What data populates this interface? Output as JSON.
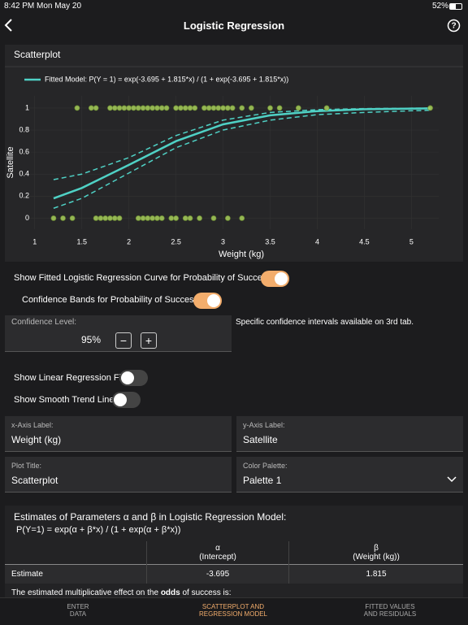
{
  "status_bar": {
    "time": "8:42 PM",
    "date": "Mon May 20",
    "battery": "52%"
  },
  "nav": {
    "title": "Logistic Regression"
  },
  "chart_data": {
    "type": "scatter",
    "title": "Scatterplot",
    "x_label": "Weight (kg)",
    "y_label": "Satellite",
    "xlim": [
      0.89,
      5.29
    ],
    "ylim": [
      -0.1,
      1.11
    ],
    "xticks": [
      1,
      1.5,
      2,
      2.5,
      3,
      3.5,
      4,
      4.5,
      5
    ],
    "yticks": [
      0,
      0.2,
      0.4,
      0.6,
      0.8,
      1
    ],
    "grid": true,
    "points": {
      "color": "#a8d05a",
      "x": [
        1.45,
        1.6,
        1.65,
        1.8,
        1.85,
        1.9,
        1.95,
        2.0,
        2.05,
        2.1,
        2.15,
        2.2,
        2.25,
        2.3,
        2.35,
        2.4,
        2.5,
        2.55,
        2.6,
        2.65,
        2.7,
        2.8,
        2.85,
        2.9,
        2.95,
        3.0,
        3.05,
        3.1,
        3.2,
        3.3,
        3.5,
        3.6,
        3.8,
        4.1,
        5.2,
        1.2,
        1.3,
        1.4,
        1.65,
        1.7,
        1.75,
        1.8,
        1.85,
        1.9,
        2.1,
        2.15,
        2.2,
        2.25,
        2.3,
        2.35,
        2.45,
        2.5,
        2.6,
        2.65,
        2.75,
        2.9,
        3.05,
        3.2
      ],
      "values": [
        1,
        1,
        1,
        1,
        1,
        1,
        1,
        1,
        1,
        1,
        1,
        1,
        1,
        1,
        1,
        1,
        1,
        1,
        1,
        1,
        1,
        1,
        1,
        1,
        1,
        1,
        1,
        1,
        1,
        1,
        1,
        1,
        1,
        1,
        1,
        0,
        0,
        0,
        0,
        0,
        0,
        0,
        0,
        0,
        0,
        0,
        0,
        0,
        0,
        0,
        0,
        0,
        0,
        0,
        0,
        0,
        0,
        0
      ]
    },
    "fit": {
      "name": "Fitted Model: P(Y = 1) = exp(-3.695 + 1.815*x) / (1 + exp(-3.695 + 1.815*x))",
      "color": "#4fd1c5",
      "x": [
        1.2,
        1.5,
        2.0,
        2.5,
        3.0,
        3.5,
        4.0,
        4.5,
        5.0,
        5.2
      ],
      "values": [
        0.18,
        0.274,
        0.484,
        0.699,
        0.852,
        0.934,
        0.972,
        0.989,
        0.995,
        0.997
      ]
    },
    "bands": {
      "color": "#4fd1c5",
      "x": [
        1.2,
        1.5,
        2.0,
        2.5,
        3.0,
        3.5,
        4.0,
        4.5,
        5.0,
        5.2
      ],
      "upper": [
        0.35,
        0.4,
        0.55,
        0.75,
        0.89,
        0.96,
        0.985,
        0.995,
        0.998,
        0.999
      ],
      "lower": [
        0.09,
        0.18,
        0.41,
        0.64,
        0.8,
        0.89,
        0.94,
        0.96,
        0.975,
        0.98
      ]
    }
  },
  "controls": {
    "toggles": [
      {
        "label": "Show Fitted Logistic Regression Curve for Probability of Success",
        "on": true
      },
      {
        "label": "Confidence Bands for Probability of Success",
        "on": true
      },
      {
        "label": "Show Linear Regression Fit",
        "on": false
      },
      {
        "label": "Show Smooth Trend Line",
        "on": false
      }
    ],
    "confidence": {
      "label": "Confidence Level:",
      "value": "95%",
      "minus": "−",
      "plus": "+"
    },
    "note": "Specific confidence intervals available on 3rd tab.",
    "fields": [
      {
        "label": "x-Axis Label:",
        "value": "Weight (kg)"
      },
      {
        "label": "y-Axis Label:",
        "value": "Satellite"
      },
      {
        "label": "Plot Title:",
        "value": "Scatterplot"
      },
      {
        "label": "Color Palette:",
        "value": "Palette 1"
      }
    ]
  },
  "estimates": {
    "title": "Estimates of Parameters α and β in Logistic Regression Model:",
    "formula": "P(Y=1) = exp(α + β*x) / (1 + exp(α + β*x))",
    "table": {
      "header": [
        [
          "α",
          "(Intercept)"
        ],
        [
          "β",
          "(Weight (kg))"
        ]
      ],
      "rows": [
        [
          "Estimate",
          "-3.695",
          "1.815"
        ]
      ]
    },
    "footer": [
      "The estimated multiplicative effect on the ",
      "odds",
      " of success is:"
    ]
  },
  "tabs": [
    {
      "line1": "ENTER",
      "line2": "DATA",
      "active": false
    },
    {
      "line1": "SCATTERPLOT AND",
      "line2": "REGRESSION MODEL",
      "active": true
    },
    {
      "line1": "FITTED VALUES",
      "line2": "AND RESIDUALS",
      "active": false
    }
  ]
}
